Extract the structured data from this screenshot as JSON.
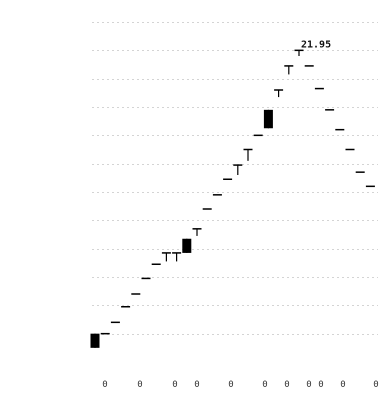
{
  "chart_data": {
    "type": "candlestick",
    "title": "",
    "xlabel": "",
    "ylabel": "",
    "grid": true,
    "ylim": [
      0,
      24
    ],
    "x_tick_labels": [
      "0",
      "0",
      "0",
      "0",
      "0",
      "0",
      "0",
      "0",
      "0",
      "0",
      "0"
    ],
    "annotation": {
      "text": "21.95",
      "index": 20
    },
    "candles": [
      {
        "open": 2.0,
        "high": 2.0,
        "low": 1.0,
        "close": 1.0
      },
      {
        "open": 2.0,
        "high": 2.0,
        "low": 2.0,
        "close": 2.0
      },
      {
        "open": 2.8,
        "high": 2.8,
        "low": 2.8,
        "close": 2.8
      },
      {
        "open": 3.9,
        "high": 3.9,
        "low": 3.9,
        "close": 3.9
      },
      {
        "open": 4.8,
        "high": 4.8,
        "low": 4.8,
        "close": 4.8
      },
      {
        "open": 5.9,
        "high": 5.9,
        "low": 5.9,
        "close": 5.9
      },
      {
        "open": 6.9,
        "high": 6.9,
        "low": 6.9,
        "close": 6.9
      },
      {
        "open": 7.7,
        "high": 7.7,
        "low": 7.1,
        "close": 7.7
      },
      {
        "open": 7.7,
        "high": 7.7,
        "low": 7.1,
        "close": 7.7
      },
      {
        "open": 8.7,
        "high": 8.7,
        "low": 7.7,
        "close": 7.7
      },
      {
        "open": 9.4,
        "high": 9.4,
        "low": 8.9,
        "close": 9.4
      },
      {
        "open": 10.8,
        "high": 10.8,
        "low": 10.8,
        "close": 10.8
      },
      {
        "open": 11.8,
        "high": 11.8,
        "low": 11.8,
        "close": 11.8
      },
      {
        "open": 12.9,
        "high": 12.9,
        "low": 12.9,
        "close": 12.9
      },
      {
        "open": 13.9,
        "high": 13.9,
        "low": 13.2,
        "close": 13.9
      },
      {
        "open": 15.0,
        "high": 15.0,
        "low": 14.2,
        "close": 15.0
      },
      {
        "open": 16.0,
        "high": 16.0,
        "low": 16.0,
        "close": 16.0
      },
      {
        "open": 17.8,
        "high": 17.8,
        "low": 16.5,
        "close": 16.5
      },
      {
        "open": 19.2,
        "high": 19.2,
        "low": 18.7,
        "close": 19.2
      },
      {
        "open": 20.9,
        "high": 20.9,
        "low": 20.3,
        "close": 20.9
      },
      {
        "open": 22.0,
        "high": 22.0,
        "low": 21.6,
        "close": 22.0
      },
      {
        "open": 20.9,
        "high": 20.9,
        "low": 20.9,
        "close": 20.9
      },
      {
        "open": 19.3,
        "high": 19.3,
        "low": 19.3,
        "close": 19.3
      },
      {
        "open": 17.8,
        "high": 17.8,
        "low": 17.8,
        "close": 17.8
      },
      {
        "open": 16.4,
        "high": 16.4,
        "low": 16.4,
        "close": 16.4
      },
      {
        "open": 15.0,
        "high": 15.0,
        "low": 15.0,
        "close": 15.0
      },
      {
        "open": 13.4,
        "high": 13.4,
        "low": 13.4,
        "close": 13.4
      },
      {
        "open": 12.4,
        "high": 12.4,
        "low": 12.4,
        "close": 12.4
      }
    ],
    "colors": {
      "candle": "#000000",
      "grid": "#d4d4d4"
    }
  }
}
